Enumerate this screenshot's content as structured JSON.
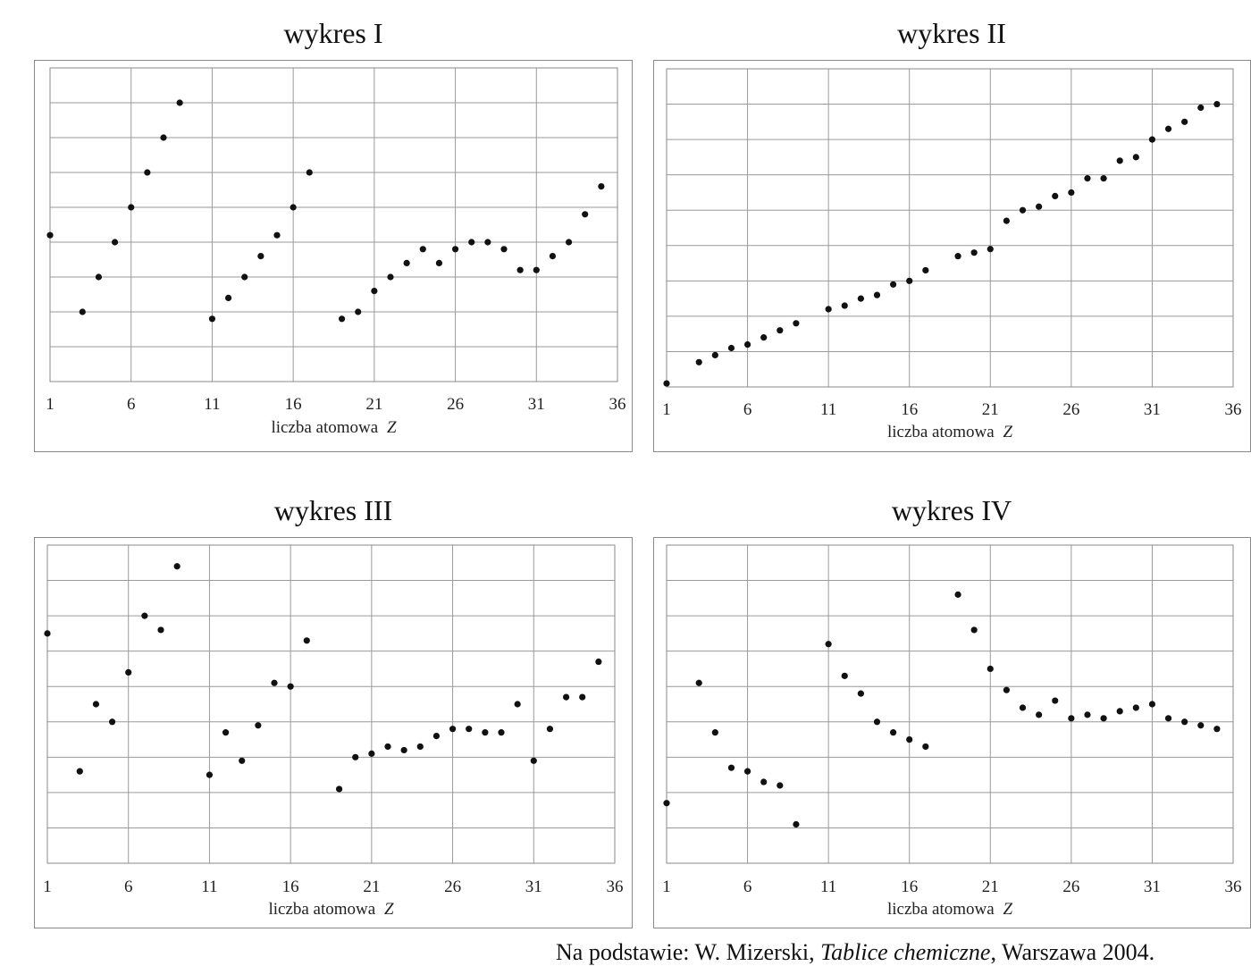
{
  "source": {
    "prefix": "Na podstawie: W. Mizerski, ",
    "book": "Tablice chemiczne",
    "suffix": ", Warszawa 2004."
  },
  "chart_data": [
    {
      "type": "scatter",
      "title": "wykres I",
      "xlabel": "liczba atomowa",
      "xlabel_var": "Z",
      "xticks": [
        1,
        6,
        11,
        16,
        21,
        26,
        31,
        36
      ],
      "xlim": [
        1,
        36
      ],
      "ylim": [
        0,
        9
      ],
      "grid": true,
      "y_ticks_labeled": false,
      "points": [
        [
          1,
          4.2
        ],
        [
          3,
          2.0
        ],
        [
          4,
          3.0
        ],
        [
          5,
          4.0
        ],
        [
          6,
          5.0
        ],
        [
          7,
          6.0
        ],
        [
          8,
          7.0
        ],
        [
          9,
          8.0
        ],
        [
          11,
          1.8
        ],
        [
          12,
          2.4
        ],
        [
          13,
          3.0
        ],
        [
          14,
          3.6
        ],
        [
          15,
          4.2
        ],
        [
          16,
          5.0
        ],
        [
          17,
          6.0
        ],
        [
          19,
          1.8
        ],
        [
          20,
          2.0
        ],
        [
          21,
          2.6
        ],
        [
          22,
          3.0
        ],
        [
          23,
          3.4
        ],
        [
          24,
          3.8
        ],
        [
          25,
          3.4
        ],
        [
          26,
          3.8
        ],
        [
          27,
          4.0
        ],
        [
          28,
          4.0
        ],
        [
          29,
          3.8
        ],
        [
          30,
          3.2
        ],
        [
          31,
          3.2
        ],
        [
          32,
          3.6
        ],
        [
          33,
          4.0
        ],
        [
          34,
          4.8
        ],
        [
          35,
          5.6
        ]
      ]
    },
    {
      "type": "scatter",
      "title": "wykres II",
      "xlabel": "liczba atomowa",
      "xlabel_var": "Z",
      "xticks": [
        1,
        6,
        11,
        16,
        21,
        26,
        31,
        36
      ],
      "xlim": [
        1,
        36
      ],
      "ylim": [
        0,
        9
      ],
      "grid": true,
      "y_ticks_labeled": false,
      "points": [
        [
          1,
          0.1
        ],
        [
          3,
          0.7
        ],
        [
          4,
          0.9
        ],
        [
          5,
          1.1
        ],
        [
          6,
          1.2
        ],
        [
          7,
          1.4
        ],
        [
          8,
          1.6
        ],
        [
          9,
          1.8
        ],
        [
          11,
          2.2
        ],
        [
          12,
          2.3
        ],
        [
          13,
          2.5
        ],
        [
          14,
          2.6
        ],
        [
          15,
          2.9
        ],
        [
          16,
          3.0
        ],
        [
          17,
          3.3
        ],
        [
          19,
          3.7
        ],
        [
          20,
          3.8
        ],
        [
          21,
          3.9
        ],
        [
          22,
          4.7
        ],
        [
          23,
          5.0
        ],
        [
          24,
          5.1
        ],
        [
          25,
          5.4
        ],
        [
          26,
          5.5
        ],
        [
          27,
          5.9
        ],
        [
          28,
          5.9
        ],
        [
          29,
          6.4
        ],
        [
          30,
          6.5
        ],
        [
          31,
          7.0
        ],
        [
          32,
          7.3
        ],
        [
          33,
          7.5
        ],
        [
          34,
          7.9
        ],
        [
          35,
          8.0
        ]
      ]
    },
    {
      "type": "scatter",
      "title": "wykres III",
      "xlabel": "liczba atomowa",
      "xlabel_var": "Z",
      "xticks": [
        1,
        6,
        11,
        16,
        21,
        26,
        31,
        36
      ],
      "xlim": [
        1,
        36
      ],
      "ylim": [
        0,
        9
      ],
      "grid": true,
      "y_ticks_labeled": false,
      "points": [
        [
          1,
          6.5
        ],
        [
          3,
          2.6
        ],
        [
          4,
          4.5
        ],
        [
          5,
          4.0
        ],
        [
          6,
          5.4
        ],
        [
          7,
          7.0
        ],
        [
          8,
          6.6
        ],
        [
          9,
          8.4
        ],
        [
          11,
          2.5
        ],
        [
          12,
          3.7
        ],
        [
          13,
          2.9
        ],
        [
          14,
          3.9
        ],
        [
          15,
          5.1
        ],
        [
          16,
          5.0
        ],
        [
          17,
          6.3
        ],
        [
          19,
          2.1
        ],
        [
          20,
          3.0
        ],
        [
          21,
          3.1
        ],
        [
          22,
          3.3
        ],
        [
          23,
          3.2
        ],
        [
          24,
          3.3
        ],
        [
          25,
          3.6
        ],
        [
          26,
          3.8
        ],
        [
          27,
          3.8
        ],
        [
          28,
          3.7
        ],
        [
          29,
          3.7
        ],
        [
          30,
          4.5
        ],
        [
          31,
          2.9
        ],
        [
          32,
          3.8
        ],
        [
          33,
          4.7
        ],
        [
          34,
          4.7
        ],
        [
          35,
          5.7
        ]
      ]
    },
    {
      "type": "scatter",
      "title": "wykres IV",
      "xlabel": "liczba atomowa",
      "xlabel_var": "Z",
      "xticks": [
        1,
        6,
        11,
        16,
        21,
        26,
        31,
        36
      ],
      "xlim": [
        1,
        36
      ],
      "ylim": [
        0,
        9
      ],
      "grid": true,
      "y_ticks_labeled": false,
      "points": [
        [
          1,
          1.7
        ],
        [
          3,
          5.1
        ],
        [
          4,
          3.7
        ],
        [
          5,
          2.7
        ],
        [
          6,
          2.6
        ],
        [
          7,
          2.3
        ],
        [
          8,
          2.2
        ],
        [
          9,
          1.1
        ],
        [
          11,
          6.2
        ],
        [
          12,
          5.3
        ],
        [
          13,
          4.8
        ],
        [
          14,
          4.0
        ],
        [
          15,
          3.7
        ],
        [
          16,
          3.5
        ],
        [
          17,
          3.3
        ],
        [
          19,
          7.6
        ],
        [
          20,
          6.6
        ],
        [
          21,
          5.5
        ],
        [
          22,
          4.9
        ],
        [
          23,
          4.4
        ],
        [
          24,
          4.2
        ],
        [
          25,
          4.6
        ],
        [
          26,
          4.1
        ],
        [
          27,
          4.2
        ],
        [
          28,
          4.1
        ],
        [
          29,
          4.3
        ],
        [
          30,
          4.4
        ],
        [
          31,
          4.5
        ],
        [
          32,
          4.1
        ],
        [
          33,
          4.0
        ],
        [
          34,
          3.9
        ],
        [
          35,
          3.8
        ]
      ]
    }
  ]
}
